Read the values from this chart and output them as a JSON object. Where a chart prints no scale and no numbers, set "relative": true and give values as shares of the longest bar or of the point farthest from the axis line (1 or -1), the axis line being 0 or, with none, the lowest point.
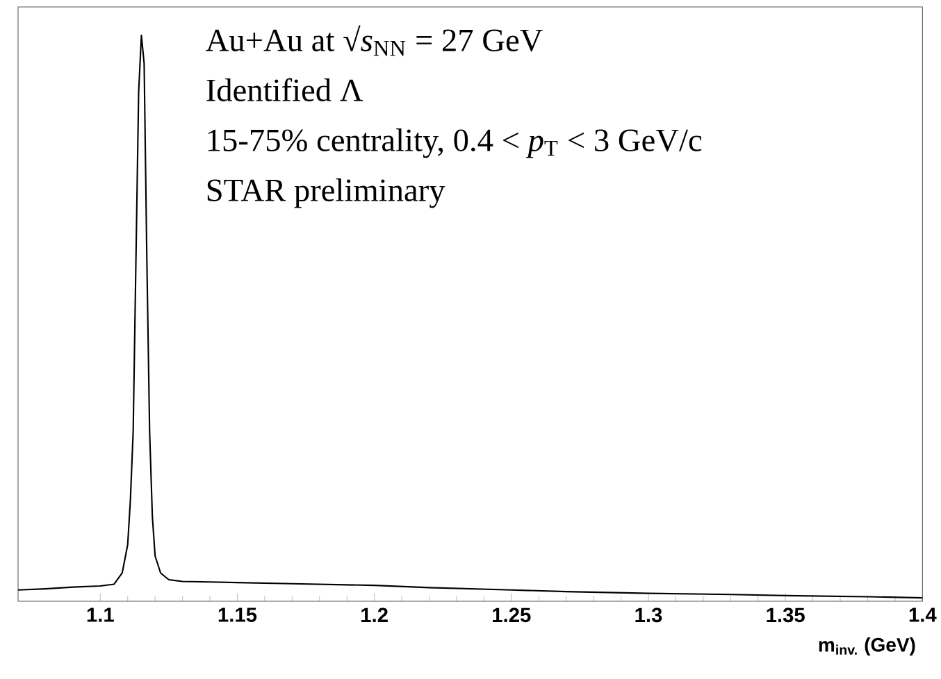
{
  "chart_data": {
    "type": "line",
    "relative": true,
    "xlabel": "m$_{inv.}$ (GeV)",
    "annotations": [
      "Au+Au at √*s*$_{NN}$ = 27 GeV",
      "Identified Λ",
      "15-75% centrality, 0.4 < *p*$_{T}$ < 3 GeV/c",
      "STAR preliminary"
    ],
    "xlim": [
      1.07,
      1.4
    ],
    "xticks": [
      1.1,
      1.15,
      1.2,
      1.25,
      1.3,
      1.35,
      1.4
    ],
    "color": "#000000",
    "x": [
      1.07,
      1.08,
      1.09,
      1.1,
      1.105,
      1.108,
      1.11,
      1.111,
      1.112,
      1.113,
      1.114,
      1.115,
      1.116,
      1.117,
      1.118,
      1.119,
      1.12,
      1.122,
      1.125,
      1.13,
      1.14,
      1.15,
      1.17,
      1.2,
      1.22,
      1.25,
      1.27,
      1.3,
      1.33,
      1.35,
      1.38,
      1.4
    ],
    "values": [
      0.02,
      0.022,
      0.025,
      0.027,
      0.03,
      0.05,
      0.1,
      0.18,
      0.3,
      0.6,
      0.9,
      1.0,
      0.95,
      0.6,
      0.3,
      0.15,
      0.08,
      0.05,
      0.038,
      0.035,
      0.034,
      0.033,
      0.031,
      0.028,
      0.024,
      0.02,
      0.017,
      0.014,
      0.012,
      0.01,
      0.008,
      0.006
    ]
  }
}
